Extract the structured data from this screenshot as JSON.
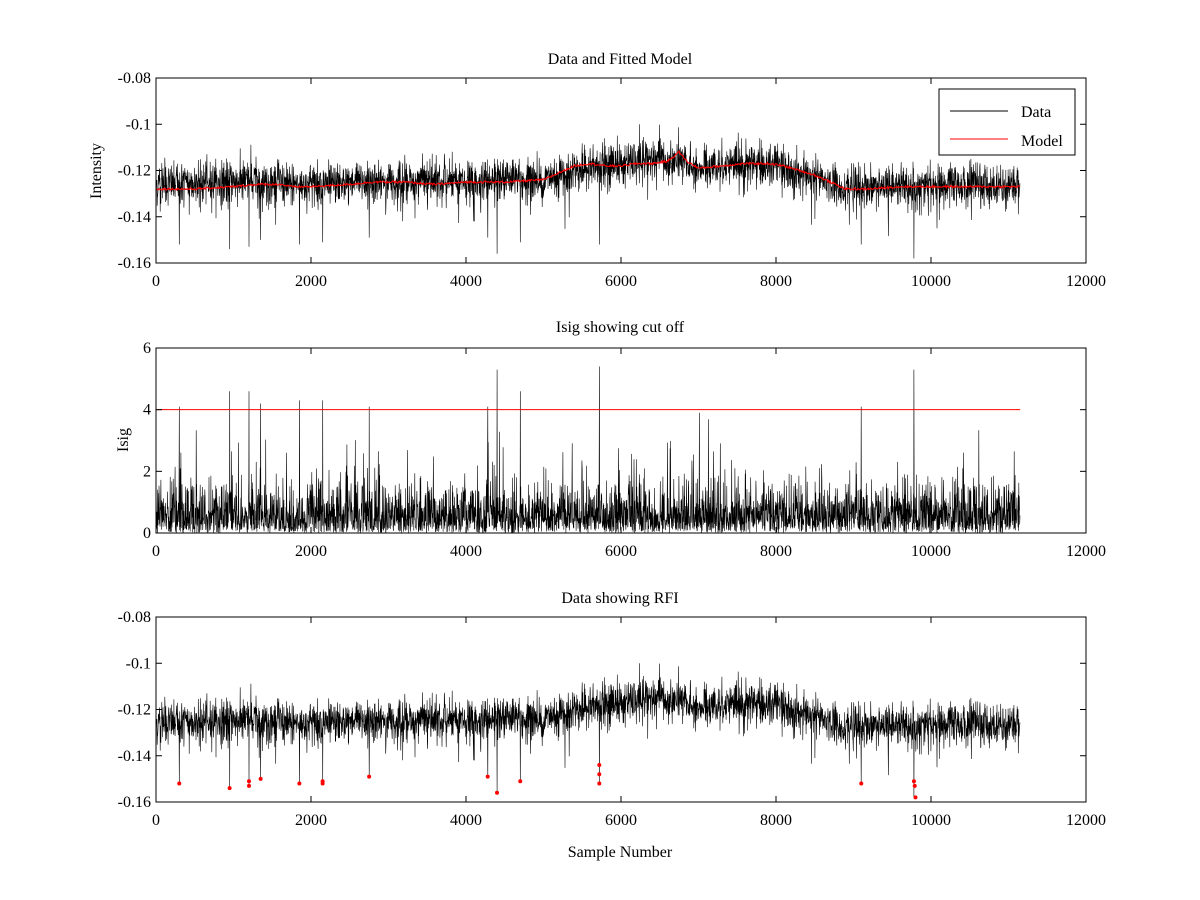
{
  "chart_data": [
    {
      "type": "line",
      "title": "Data and Fitted Model",
      "xlabel": "",
      "ylabel": "Intensity",
      "xlim": [
        0,
        12000
      ],
      "ylim": [
        -0.16,
        -0.08
      ],
      "xticks": [
        0,
        2000,
        4000,
        6000,
        8000,
        10000,
        12000
      ],
      "yticks": [
        -0.16,
        -0.14,
        -0.12,
        -0.1,
        -0.08
      ],
      "xtick_labels": [
        "0",
        "2000",
        "4000",
        "6000",
        "8000",
        "10000",
        "12000"
      ],
      "ytick_labels": [
        "-0.16",
        "-0.14",
        "-0.12",
        "-0.1",
        "-0.08"
      ],
      "legend_position": "top-right",
      "series": [
        {
          "name": "Data",
          "color": "#000000",
          "note": "noisy sampled signal, ~11150 samples; envelope summarized by baseline and spread",
          "sample_count": 11150,
          "baseline_x": [
            0,
            1300,
            2000,
            2800,
            3500,
            4000,
            5000,
            5500,
            6000,
            6500,
            6800,
            7000,
            7500,
            8000,
            8500,
            8900,
            9500,
            10000,
            11150
          ],
          "baseline_y": [
            -0.126,
            -0.125,
            -0.126,
            -0.125,
            -0.125,
            -0.125,
            -0.124,
            -0.119,
            -0.117,
            -0.115,
            -0.118,
            -0.118,
            -0.117,
            -0.118,
            -0.124,
            -0.127,
            -0.127,
            -0.127,
            -0.126
          ],
          "spike_x": [
            300,
            950,
            1200,
            1350,
            1850,
            2150,
            2750,
            4280,
            4400,
            4700,
            5720,
            9100,
            9780
          ],
          "spike_y": [
            -0.152,
            -0.154,
            -0.153,
            -0.15,
            -0.152,
            -0.151,
            -0.149,
            -0.149,
            -0.156,
            -0.151,
            -0.152,
            -0.152,
            -0.158
          ]
        },
        {
          "name": "Model",
          "color": "#ff0000",
          "x": [
            0,
            500,
            1000,
            1300,
            1600,
            1750,
            2000,
            2500,
            2800,
            3200,
            3600,
            4000,
            4500,
            5000,
            5200,
            5400,
            5600,
            5800,
            6000,
            6200,
            6400,
            6600,
            6750,
            6850,
            7000,
            7300,
            7600,
            7900,
            8100,
            8300,
            8500,
            8700,
            8900,
            9200,
            9600,
            10000,
            10500,
            11150
          ],
          "y": [
            -0.128,
            -0.128,
            -0.127,
            -0.126,
            -0.126,
            -0.127,
            -0.127,
            -0.126,
            -0.125,
            -0.125,
            -0.126,
            -0.125,
            -0.125,
            -0.124,
            -0.121,
            -0.118,
            -0.117,
            -0.118,
            -0.118,
            -0.117,
            -0.117,
            -0.116,
            -0.112,
            -0.116,
            -0.119,
            -0.118,
            -0.117,
            -0.117,
            -0.118,
            -0.12,
            -0.122,
            -0.125,
            -0.128,
            -0.128,
            -0.127,
            -0.127,
            -0.127,
            -0.127
          ]
        }
      ]
    },
    {
      "type": "line",
      "title": "Isig showing cut off",
      "xlabel": "",
      "ylabel": "Isig",
      "xlim": [
        0,
        12000
      ],
      "ylim": [
        0,
        6
      ],
      "xticks": [
        0,
        2000,
        4000,
        6000,
        8000,
        10000,
        12000
      ],
      "yticks": [
        0,
        2,
        4,
        6
      ],
      "xtick_labels": [
        "0",
        "2000",
        "4000",
        "6000",
        "8000",
        "10000",
        "12000"
      ],
      "ytick_labels": [
        "0",
        "2",
        "4",
        "6"
      ],
      "cutoff": {
        "value": 4,
        "color": "#ff0000",
        "x_range": [
          0,
          11150
        ]
      },
      "series": [
        {
          "name": "Isig",
          "color": "#000000",
          "sample_count": 11150,
          "peak_x": [
            300,
            950,
            1200,
            1350,
            1850,
            2150,
            2750,
            4280,
            4400,
            4700,
            5720,
            9100,
            9780
          ],
          "peak_y": [
            4.1,
            4.6,
            4.6,
            4.2,
            4.3,
            4.3,
            4.1,
            4.1,
            5.3,
            4.6,
            5.4,
            4.1,
            5.3
          ]
        }
      ]
    },
    {
      "type": "line",
      "title": "Data showing RFI",
      "xlabel": "Sample Number",
      "ylabel": "",
      "xlim": [
        0,
        12000
      ],
      "ylim": [
        -0.16,
        -0.08
      ],
      "xticks": [
        0,
        2000,
        4000,
        6000,
        8000,
        10000,
        12000
      ],
      "yticks": [
        -0.16,
        -0.14,
        -0.12,
        -0.1,
        -0.08
      ],
      "xtick_labels": [
        "0",
        "2000",
        "4000",
        "6000",
        "8000",
        "10000",
        "12000"
      ],
      "ytick_labels": [
        "-0.16",
        "-0.14",
        "-0.12",
        "-0.1",
        "-0.08"
      ],
      "series": [
        {
          "name": "Data",
          "color": "#000000",
          "sample_count": 11150,
          "same_as": "panel 1 Data"
        }
      ],
      "rfi_points": {
        "color": "#ff0000",
        "x": [
          300,
          950,
          1200,
          1200,
          1350,
          1850,
          2150,
          2150,
          2750,
          4280,
          4400,
          4700,
          5720,
          5720,
          5720,
          9100,
          9780,
          9790,
          9800
        ],
        "y": [
          -0.152,
          -0.154,
          -0.151,
          -0.153,
          -0.15,
          -0.152,
          -0.151,
          -0.152,
          -0.149,
          -0.149,
          -0.156,
          -0.151,
          -0.144,
          -0.148,
          -0.152,
          -0.152,
          -0.151,
          -0.153,
          -0.158
        ]
      }
    }
  ]
}
